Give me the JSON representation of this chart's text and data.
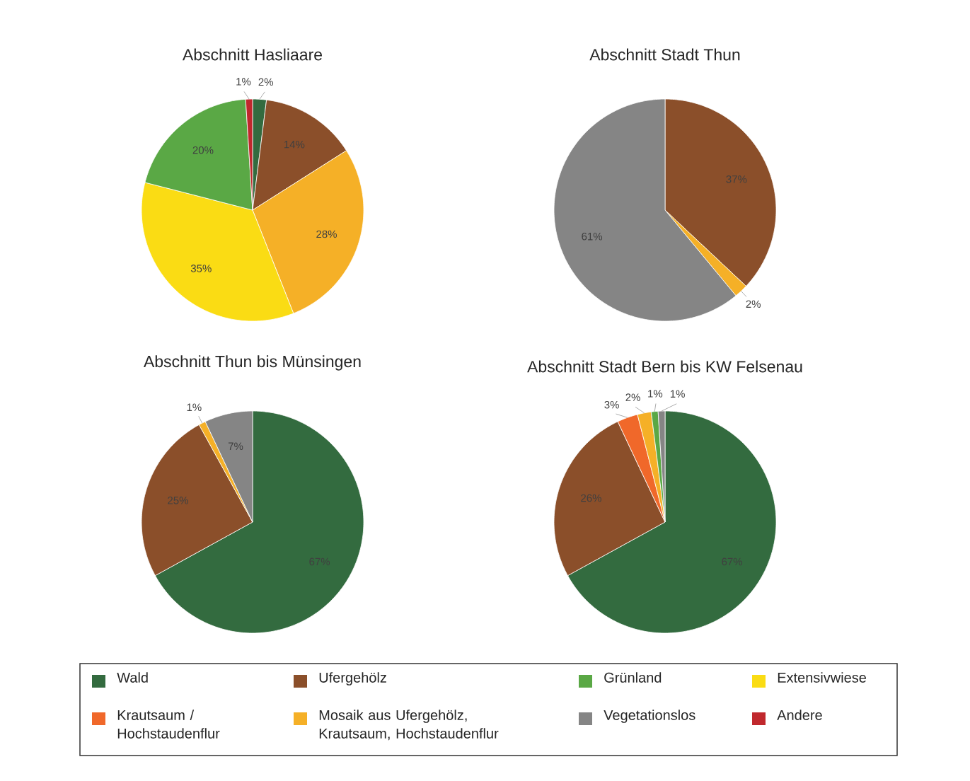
{
  "chart_data": [
    {
      "type": "pie",
      "title": "Abschnitt Hasliaare",
      "categories": [
        null,
        null,
        null,
        null,
        null,
        null
      ],
      "values": [
        2,
        14,
        28,
        35,
        20,
        1
      ],
      "colors": [
        "#336b3f",
        "#8b4f2a",
        "#f5b027",
        "#fadc14",
        "#5aa845",
        "#c0282d"
      ],
      "value_labels": [
        "2%",
        "14%",
        "28%",
        "35%",
        "20%",
        "1%"
      ]
    },
    {
      "type": "pie",
      "title": "Abschnitt Stadt Thun",
      "categories": [
        null,
        null,
        null
      ],
      "values": [
        37,
        2,
        61
      ],
      "colors": [
        "#8b4f2a",
        "#f5b027",
        "#858585"
      ],
      "value_labels": [
        "37%",
        "2%",
        "61%"
      ]
    },
    {
      "type": "pie",
      "title": "Abschnitt Thun bis Münsingen",
      "categories": [
        null,
        null,
        null,
        null
      ],
      "values": [
        67,
        25,
        1,
        7
      ],
      "colors": [
        "#336b3f",
        "#8b4f2a",
        "#f5b027",
        "#858585"
      ],
      "value_labels": [
        "67%",
        "25%",
        "1%",
        "7%"
      ]
    },
    {
      "type": "pie",
      "title": "Abschnitt Stadt Bern bis KW Felsenau",
      "categories": [
        null,
        null,
        null,
        null,
        null,
        null
      ],
      "values": [
        67,
        26,
        3,
        2,
        1,
        1
      ],
      "colors": [
        "#336b3f",
        "#8b4f2a",
        "#f0682a",
        "#f5b027",
        "#5aa845",
        "#858585"
      ],
      "value_labels": [
        "67%",
        "26%",
        "3%",
        "2%",
        "1%",
        "1%"
      ]
    },
    {
      "type": "other",
      "categories": [
        "Wald",
        "Ufergehölz",
        "Grünland",
        "Extensivwiese",
        "Krautsaum / Hochstaudenflur",
        "Mosaik aus Ufergehölz, Krautsaum, Hochstaudenflur",
        "Vegetationslos",
        "Andere"
      ],
      "colors": [
        "#336b3f",
        "#8b4f2a",
        "#5aa845",
        "#fadc14",
        "#f0682a",
        "#f5b027",
        "#858585",
        "#c0282d"
      ]
    }
  ]
}
